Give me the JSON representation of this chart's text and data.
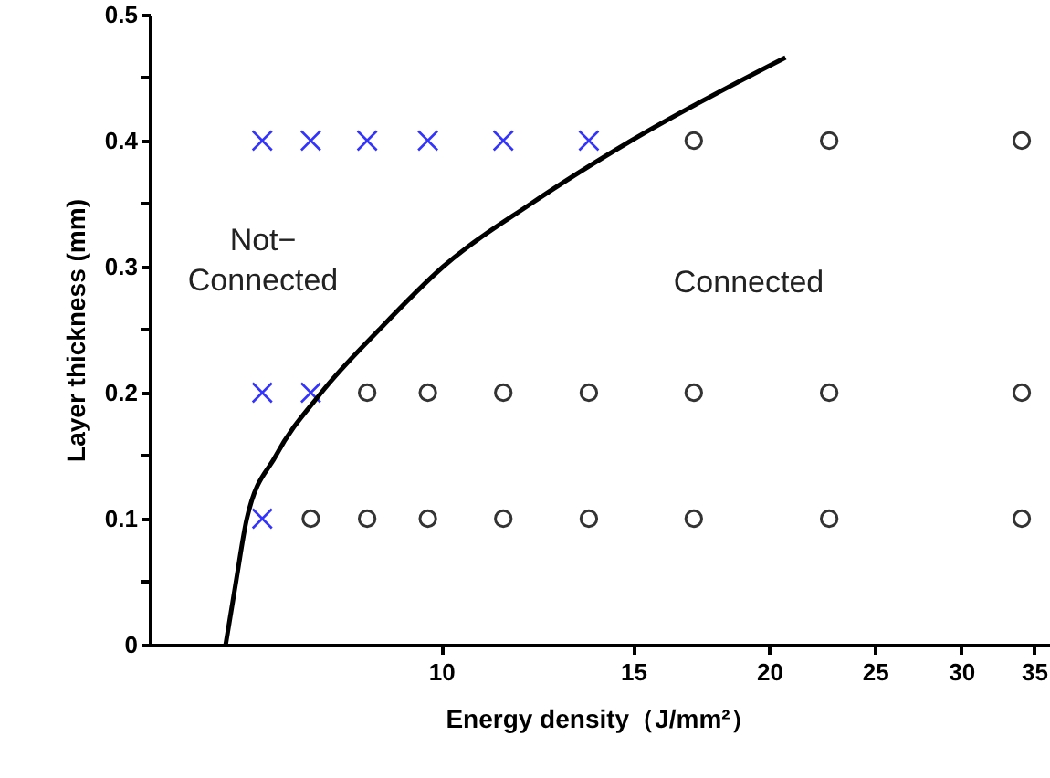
{
  "chart_data": {
    "type": "scatter",
    "xlabel": "Energy density（J/mm²）",
    "ylabel": "Layer thickness (mm)",
    "log": "x",
    "xlim": [
      5.4,
      36.2
    ],
    "xticks": [
      10,
      15,
      20,
      25,
      30,
      35
    ],
    "ylim": [
      0,
      0.5
    ],
    "yticks": [
      0,
      {
        "value": 0.05,
        "label": null
      },
      0.1,
      {
        "value": 0.15,
        "label": null
      },
      0.2,
      {
        "value": 0.25,
        "label": null
      },
      0.3,
      {
        "value": 0.35,
        "label": null
      },
      0.4,
      {
        "value": 0.45,
        "label": null
      },
      0.5
    ],
    "grid": false,
    "annotations": [
      "Not−\nConnected",
      "Connected"
    ],
    "series": [
      {
        "marker": "cross",
        "color": "#3333ff",
        "x": [
          6.85,
          7.59,
          8.55,
          9.72,
          11.4,
          13.66,
          6.85,
          7.59,
          6.85
        ],
        "values": [
          0.4,
          0.4,
          0.4,
          0.4,
          0.4,
          0.4,
          0.2,
          0.2,
          0.1
        ]
      },
      {
        "marker": "circle",
        "color": "#333333",
        "x": [
          17.05,
          22.7,
          34.1,
          8.55,
          9.72,
          11.4,
          13.66,
          17.05,
          22.7,
          34.1,
          7.59,
          8.55,
          9.72,
          11.4,
          13.66,
          17.05,
          22.7,
          34.1
        ],
        "values": [
          0.4,
          0.4,
          0.4,
          0.2,
          0.2,
          0.2,
          0.2,
          0.2,
          0.2,
          0.2,
          0.1,
          0.1,
          0.1,
          0.1,
          0.1,
          0.1,
          0.1,
          0.1
        ]
      },
      {
        "type": "line",
        "marker": "none",
        "color": "#000000",
        "x": [
          6.34,
          6.48,
          6.63,
          7.05,
          7.76,
          8.77,
          10.04,
          12.09,
          14.94,
          20.7
        ],
        "values": [
          0,
          0.05,
          0.1,
          0.15,
          0.2,
          0.25,
          0.3,
          0.35,
          0.4,
          0.466
        ]
      }
    ]
  }
}
